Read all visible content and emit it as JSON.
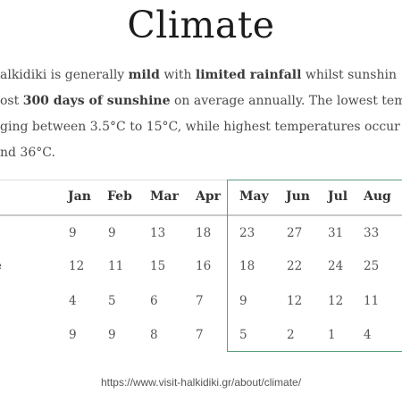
{
  "page": {
    "title": "Climate",
    "paragraph": {
      "line1": {
        "a": "alkidiki is generally ",
        "b1": "mild",
        "c": " with ",
        "b2": "limited rainfall",
        "d": " whilst sunshin"
      },
      "line2": {
        "a": "ost ",
        "b1": "300 days of sunshine",
        "c": " on average annually. The lowest tem"
      },
      "line3": "ging between 3.5°C to 15°C, while highest temperatures occur",
      "line4": "nd 36°C."
    },
    "footer_url": "https://www.visit-halkidiki.gr/about/climate/"
  },
  "table": {
    "columns": [
      "Jan",
      "Feb",
      "Mar",
      "Apr",
      "May",
      "Jun",
      "Jul",
      "Aug"
    ],
    "row_labels": [
      "",
      "e",
      "",
      ""
    ],
    "rows": [
      [
        "9",
        "9",
        "13",
        "18",
        "23",
        "27",
        "31",
        "33"
      ],
      [
        "12",
        "11",
        "15",
        "16",
        "18",
        "22",
        "24",
        "25"
      ],
      [
        "4",
        "5",
        "6",
        "7",
        "9",
        "12",
        "12",
        "11"
      ],
      [
        "9",
        "9",
        "8",
        "7",
        "5",
        "2",
        "1",
        "4"
      ]
    ],
    "highlight_color": "#5b9e7e"
  }
}
